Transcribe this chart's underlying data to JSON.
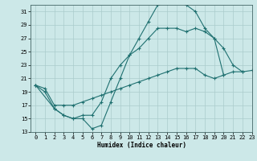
{
  "xlabel": "Humidex (Indice chaleur)",
  "xlim": [
    -0.5,
    23
  ],
  "ylim": [
    13,
    32
  ],
  "yticks": [
    13,
    15,
    17,
    19,
    21,
    23,
    25,
    27,
    29,
    31
  ],
  "xticks": [
    0,
    1,
    2,
    3,
    4,
    5,
    6,
    7,
    8,
    9,
    10,
    11,
    12,
    13,
    14,
    15,
    16,
    17,
    18,
    19,
    20,
    21,
    22,
    23
  ],
  "background_color": "#cce8e8",
  "grid_color": "#aacccc",
  "line_color": "#1f7070",
  "line1_x": [
    0,
    1,
    2,
    3,
    4,
    5,
    6,
    7,
    8,
    9,
    10,
    11,
    12,
    13,
    14,
    15,
    16,
    17,
    18,
    19,
    20,
    21,
    22
  ],
  "line1_y": [
    20.0,
    19.0,
    16.5,
    15.5,
    15.0,
    15.0,
    13.5,
    14.0,
    17.5,
    21.0,
    24.5,
    27.0,
    29.5,
    32.0,
    32.2,
    32.5,
    32.0,
    31.0,
    28.5,
    27.0,
    25.5,
    23.0,
    22.0
  ],
  "line2_x": [
    0,
    2,
    3,
    4,
    5,
    6,
    7,
    8,
    9,
    10,
    11,
    12,
    13,
    14,
    15,
    16,
    17,
    18,
    19,
    20
  ],
  "line2_y": [
    20.0,
    16.5,
    15.5,
    15.0,
    15.5,
    15.5,
    17.5,
    21.0,
    23.0,
    24.5,
    25.5,
    27.0,
    28.5,
    28.5,
    28.5,
    28.0,
    28.5,
    28.0,
    27.0,
    21.5
  ],
  "line3_x": [
    0,
    1,
    2,
    3,
    4,
    5,
    6,
    7,
    8,
    9,
    10,
    11,
    12,
    13,
    14,
    15,
    16,
    17,
    18,
    19,
    20,
    21,
    22,
    23
  ],
  "line3_y": [
    20.0,
    19.5,
    17.0,
    17.0,
    17.0,
    17.5,
    18.0,
    18.5,
    19.0,
    19.5,
    20.0,
    20.5,
    21.0,
    21.5,
    22.0,
    22.5,
    22.5,
    22.5,
    21.5,
    21.0,
    21.5,
    22.0,
    22.0,
    22.2
  ]
}
